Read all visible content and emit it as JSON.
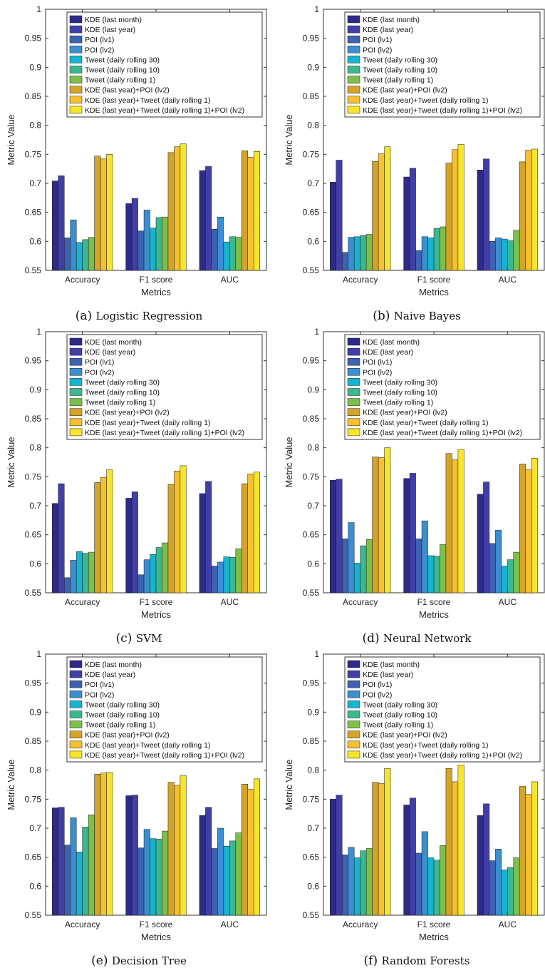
{
  "chart_data": [
    {
      "type": "bar",
      "panel_label": "(a)",
      "caption": "Logistic Regression",
      "xlabel": "Metrics",
      "ylabel": "Metric Value",
      "ylim": [
        0.55,
        1
      ],
      "yticks": [
        "0.55",
        "0.6",
        "0.65",
        "0.7",
        "0.75",
        "0.8",
        "0.85",
        "0.9",
        "0.95",
        "1"
      ],
      "categories": [
        "Accuracy",
        "F1 score",
        "AUC"
      ],
      "legend_position": "top-right",
      "grid": false,
      "series": [
        {
          "name": "KDE (last month)",
          "values": [
            0.704,
            0.665,
            0.722
          ]
        },
        {
          "name": "KDE (last year)",
          "values": [
            0.713,
            0.674,
            0.729
          ]
        },
        {
          "name": "POI (lv1)",
          "values": [
            0.606,
            0.618,
            0.621
          ]
        },
        {
          "name": "POI (lv2)",
          "values": [
            0.637,
            0.654,
            0.642
          ]
        },
        {
          "name": "Tweet (daily rolling 30)",
          "values": [
            0.598,
            0.623,
            0.599
          ]
        },
        {
          "name": "Tweet (daily rolling 10)",
          "values": [
            0.603,
            0.641,
            0.608
          ]
        },
        {
          "name": "Tweet (daily rolling 1)",
          "values": [
            0.607,
            0.642,
            0.607
          ]
        },
        {
          "name": "KDE (last year)+POI (lv2)",
          "values": [
            0.747,
            0.753,
            0.756
          ]
        },
        {
          "name": "KDE (last year)+Tweet (daily rolling 1)",
          "values": [
            0.742,
            0.763,
            0.745
          ]
        },
        {
          "name": "KDE (last year)+Tweet (daily rolling 1)+POI (lv2)",
          "values": [
            0.75,
            0.768,
            0.755
          ]
        }
      ]
    },
    {
      "type": "bar",
      "panel_label": "(b)",
      "caption": "Naive Bayes",
      "xlabel": "Metrics",
      "ylabel": "Metric Value",
      "ylim": [
        0.55,
        1
      ],
      "yticks": [
        "0.55",
        "0.6",
        "0.65",
        "0.7",
        "0.75",
        "0.8",
        "0.85",
        "0.9",
        "0.95",
        "1"
      ],
      "categories": [
        "Accuracy",
        "F1 score",
        "AUC"
      ],
      "legend_position": "top-right",
      "grid": false,
      "series": [
        {
          "name": "KDE (last month)",
          "values": [
            0.702,
            0.711,
            0.723
          ]
        },
        {
          "name": "KDE (last year)",
          "values": [
            0.74,
            0.726,
            0.742
          ]
        },
        {
          "name": "POI (lv1)",
          "values": [
            0.581,
            0.584,
            0.6
          ]
        },
        {
          "name": "POI (lv2)",
          "values": [
            0.607,
            0.608,
            0.606
          ]
        },
        {
          "name": "Tweet (daily rolling 30)",
          "values": [
            0.608,
            0.606,
            0.604
          ]
        },
        {
          "name": "Tweet (daily rolling 10)",
          "values": [
            0.61,
            0.622,
            0.601
          ]
        },
        {
          "name": "Tweet (daily rolling 1)",
          "values": [
            0.612,
            0.625,
            0.619
          ]
        },
        {
          "name": "KDE (last year)+POI (lv2)",
          "values": [
            0.738,
            0.735,
            0.737
          ]
        },
        {
          "name": "KDE (last year)+Tweet (daily rolling 1)",
          "values": [
            0.751,
            0.758,
            0.757
          ]
        },
        {
          "name": "KDE (last year)+Tweet (daily rolling 1)+POI (lv2)",
          "values": [
            0.763,
            0.767,
            0.759
          ]
        }
      ]
    },
    {
      "type": "bar",
      "panel_label": "(c)",
      "caption": "SVM",
      "xlabel": "Metrics",
      "ylabel": "Metric Value",
      "ylim": [
        0.55,
        1
      ],
      "yticks": [
        "0.55",
        "0.6",
        "0.65",
        "0.7",
        "0.75",
        "0.8",
        "0.85",
        "0.9",
        "0.95",
        "1"
      ],
      "categories": [
        "Accuracy",
        "F1 score",
        "AUC"
      ],
      "legend_position": "top-right",
      "grid": false,
      "series": [
        {
          "name": "KDE (last month)",
          "values": [
            0.704,
            0.713,
            0.721
          ]
        },
        {
          "name": "KDE (last year)",
          "values": [
            0.738,
            0.724,
            0.742
          ]
        },
        {
          "name": "POI (lv1)",
          "values": [
            0.576,
            0.581,
            0.596
          ]
        },
        {
          "name": "POI (lv2)",
          "values": [
            0.606,
            0.607,
            0.603
          ]
        },
        {
          "name": "Tweet (daily rolling 30)",
          "values": [
            0.621,
            0.616,
            0.612
          ]
        },
        {
          "name": "Tweet (daily rolling 10)",
          "values": [
            0.618,
            0.628,
            0.611
          ]
        },
        {
          "name": "Tweet (daily rolling 1)",
          "values": [
            0.62,
            0.636,
            0.626
          ]
        },
        {
          "name": "KDE (last year)+POI (lv2)",
          "values": [
            0.74,
            0.737,
            0.738
          ]
        },
        {
          "name": "KDE (last year)+Tweet (daily rolling 1)",
          "values": [
            0.749,
            0.76,
            0.755
          ]
        },
        {
          "name": "KDE (last year)+Tweet (daily rolling 1)+POI (lv2)",
          "values": [
            0.762,
            0.769,
            0.758
          ]
        }
      ]
    },
    {
      "type": "bar",
      "panel_label": "(d)",
      "caption": "Neural Network",
      "xlabel": "Metrics",
      "ylabel": "Metric Value",
      "ylim": [
        0.55,
        1
      ],
      "yticks": [
        "0.55",
        "0.6",
        "0.65",
        "0.7",
        "0.75",
        "0.8",
        "0.85",
        "0.9",
        "0.95",
        "1"
      ],
      "categories": [
        "Accuracy",
        "F1 score",
        "AUC"
      ],
      "legend_position": "top-right",
      "grid": false,
      "series": [
        {
          "name": "KDE (last month)",
          "values": [
            0.744,
            0.747,
            0.72
          ]
        },
        {
          "name": "KDE (last year)",
          "values": [
            0.746,
            0.756,
            0.741
          ]
        },
        {
          "name": "POI (lv1)",
          "values": [
            0.643,
            0.643,
            0.635
          ]
        },
        {
          "name": "POI (lv2)",
          "values": [
            0.671,
            0.674,
            0.658
          ]
        },
        {
          "name": "Tweet (daily rolling 30)",
          "values": [
            0.601,
            0.614,
            0.596
          ]
        },
        {
          "name": "Tweet (daily rolling 10)",
          "values": [
            0.631,
            0.613,
            0.607
          ]
        },
        {
          "name": "Tweet (daily rolling 1)",
          "values": [
            0.642,
            0.633,
            0.62
          ]
        },
        {
          "name": "KDE (last year)+POI (lv2)",
          "values": [
            0.784,
            0.79,
            0.772
          ]
        },
        {
          "name": "KDE (last year)+Tweet (daily rolling 1)",
          "values": [
            0.783,
            0.779,
            0.762
          ]
        },
        {
          "name": "KDE (last year)+Tweet (daily rolling 1)+POI (lv2)",
          "values": [
            0.8,
            0.797,
            0.782
          ]
        }
      ]
    },
    {
      "type": "bar",
      "panel_label": "(e)",
      "caption": "Decision Tree",
      "xlabel": "Metrics",
      "ylabel": "Metric Value",
      "ylim": [
        0.55,
        1
      ],
      "yticks": [
        "0.55",
        "0.6",
        "0.65",
        "0.7",
        "0.75",
        "0.8",
        "0.85",
        "0.9",
        "0.95",
        "1"
      ],
      "categories": [
        "Accuracy",
        "F1 score",
        "AUC"
      ],
      "legend_position": "top-right",
      "grid": false,
      "series": [
        {
          "name": "KDE (last month)",
          "values": [
            0.735,
            0.756,
            0.722
          ]
        },
        {
          "name": "KDE (last year)",
          "values": [
            0.736,
            0.757,
            0.736
          ]
        },
        {
          "name": "POI (lv1)",
          "values": [
            0.671,
            0.666,
            0.665
          ]
        },
        {
          "name": "POI (lv2)",
          "values": [
            0.718,
            0.698,
            0.7
          ]
        },
        {
          "name": "Tweet (daily rolling 30)",
          "values": [
            0.659,
            0.682,
            0.669
          ]
        },
        {
          "name": "Tweet (daily rolling 10)",
          "values": [
            0.702,
            0.681,
            0.678
          ]
        },
        {
          "name": "Tweet (daily rolling 1)",
          "values": [
            0.723,
            0.695,
            0.692
          ]
        },
        {
          "name": "KDE (last year)+POI (lv2)",
          "values": [
            0.793,
            0.779,
            0.776
          ]
        },
        {
          "name": "KDE (last year)+Tweet (daily rolling 1)",
          "values": [
            0.795,
            0.774,
            0.767
          ]
        },
        {
          "name": "KDE (last year)+Tweet (daily rolling 1)+POI (lv2)",
          "values": [
            0.796,
            0.791,
            0.785
          ]
        }
      ]
    },
    {
      "type": "bar",
      "panel_label": "(f)",
      "caption": "Random Forests",
      "xlabel": "Metrics",
      "ylabel": "Metric Value",
      "ylim": [
        0.55,
        1
      ],
      "yticks": [
        "0.55",
        "0.6",
        "0.65",
        "0.7",
        "0.75",
        "0.8",
        "0.85",
        "0.9",
        "0.95",
        "1"
      ],
      "categories": [
        "Accuracy",
        "F1 score",
        "AUC"
      ],
      "legend_position": "top-right",
      "grid": false,
      "series": [
        {
          "name": "KDE (last month)",
          "values": [
            0.75,
            0.74,
            0.722
          ]
        },
        {
          "name": "KDE (last year)",
          "values": [
            0.757,
            0.752,
            0.742
          ]
        },
        {
          "name": "POI (lv1)",
          "values": [
            0.654,
            0.657,
            0.644
          ]
        },
        {
          "name": "POI (lv2)",
          "values": [
            0.667,
            0.694,
            0.664
          ]
        },
        {
          "name": "Tweet (daily rolling 30)",
          "values": [
            0.649,
            0.649,
            0.628
          ]
        },
        {
          "name": "Tweet (daily rolling 10)",
          "values": [
            0.661,
            0.645,
            0.632
          ]
        },
        {
          "name": "Tweet (daily rolling 1)",
          "values": [
            0.665,
            0.67,
            0.649
          ]
        },
        {
          "name": "KDE (last year)+POI (lv2)",
          "values": [
            0.779,
            0.803,
            0.772
          ]
        },
        {
          "name": "KDE (last year)+Tweet (daily rolling 1)",
          "values": [
            0.777,
            0.78,
            0.758
          ]
        },
        {
          "name": "KDE (last year)+Tweet (daily rolling 1)+POI (lv2)",
          "values": [
            0.803,
            0.809,
            0.78
          ]
        }
      ]
    }
  ],
  "colors": [
    "#2d2b86",
    "#413fa6",
    "#3e62b0",
    "#3b8fd0",
    "#16b4d0",
    "#3cb890",
    "#7dbf4b",
    "#d4a42a",
    "#f5c032",
    "#f7e52c"
  ]
}
